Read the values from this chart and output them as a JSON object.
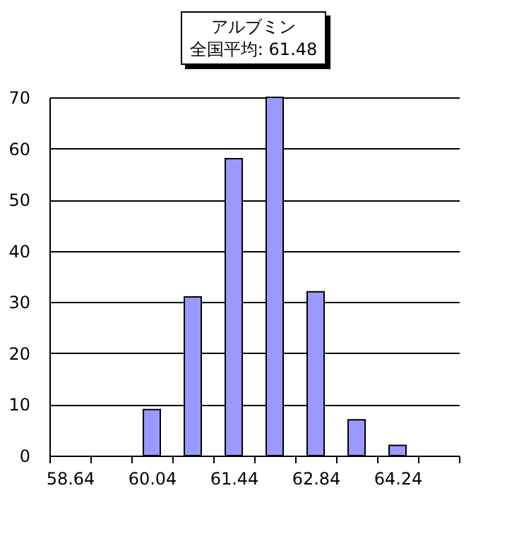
{
  "chart_data": {
    "type": "bar",
    "title": "アルブミン",
    "subtitle": "全国平均: 61.48",
    "categories": [
      "58.64",
      null,
      "60.04",
      null,
      "61.44",
      null,
      "62.84",
      null,
      "64.24",
      null
    ],
    "values": [
      0,
      0,
      9,
      31,
      58,
      70,
      32,
      7,
      2,
      0
    ],
    "color": "#9999ff",
    "ylim": [
      0,
      70
    ],
    "yticks": [
      0,
      10,
      20,
      30,
      40,
      50,
      60,
      70
    ],
    "grid": "y",
    "legend": false
  }
}
